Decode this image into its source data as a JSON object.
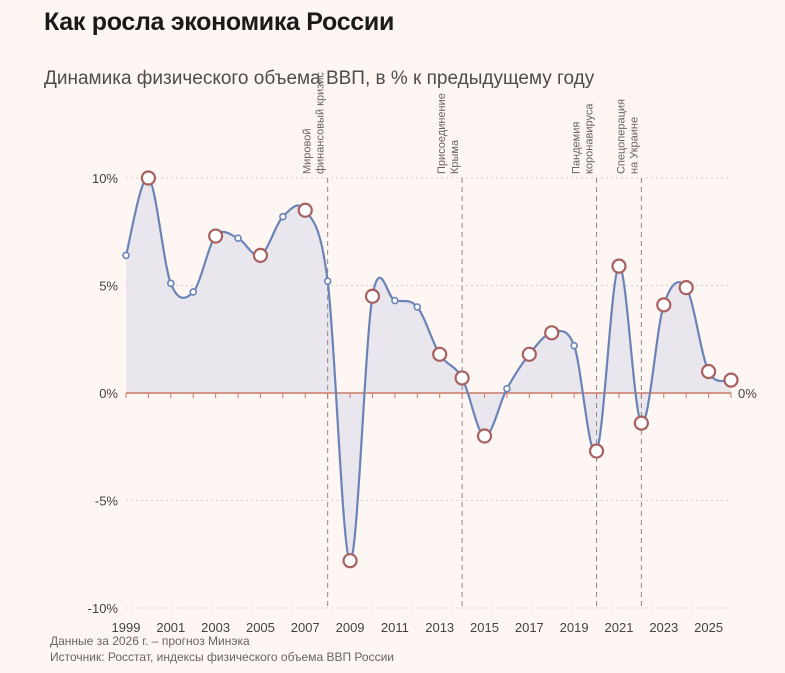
{
  "header": {
    "title": "Как росла экономика России",
    "subtitle": "Динамика физического объема ВВП, в % к предыдущему году"
  },
  "footer": {
    "note": "Данные за 2026 г. – прогноз Минэка",
    "source": "Источник: Росстат, индексы физического объема ВВП России"
  },
  "colors": {
    "line": "#6b84b8",
    "area": "#e6e3ec",
    "zero_line": "#c97a6a",
    "marker_stroke": "#a86060",
    "marker_fill": "#ffffff",
    "grid": "#d9d0cc",
    "event_line": "#888888"
  },
  "chart_data": {
    "type": "area",
    "title": "",
    "xlabel": "",
    "ylabel": "",
    "x": [
      1999,
      2000,
      2001,
      2002,
      2003,
      2004,
      2005,
      2006,
      2007,
      2008,
      2009,
      2010,
      2011,
      2012,
      2013,
      2014,
      2015,
      2016,
      2017,
      2018,
      2019,
      2020,
      2021,
      2022,
      2023,
      2024,
      2025,
      2026
    ],
    "values": [
      6.4,
      10.0,
      5.1,
      4.7,
      7.3,
      7.2,
      6.4,
      8.2,
      8.5,
      5.2,
      -7.8,
      4.5,
      4.3,
      4.0,
      1.8,
      0.7,
      -2.0,
      0.2,
      1.8,
      2.8,
      2.2,
      -2.7,
      5.9,
      -1.4,
      4.1,
      4.9,
      1.0,
      0.6
    ],
    "highlighted_years": [
      2000,
      2003,
      2005,
      2007,
      2009,
      2010,
      2013,
      2014,
      2015,
      2017,
      2018,
      2020,
      2021,
      2022,
      2023,
      2024,
      2025,
      2026
    ],
    "x_tick_labels": [
      "1999",
      "2001",
      "2003",
      "2005",
      "2007",
      "2009",
      "2011",
      "2013",
      "2015",
      "2017",
      "2019",
      "2021",
      "2023",
      "2025"
    ],
    "y_ticks": [
      10,
      5,
      0,
      -5,
      -10
    ],
    "y_tick_labels": [
      "10%",
      "5%",
      "0%",
      "-5%",
      "-10%"
    ],
    "zero_label": "0%",
    "xlim": [
      1999,
      2026
    ],
    "ylim": [
      -10,
      10
    ],
    "grid": true,
    "events": [
      {
        "x": 2008,
        "lines": [
          "Мировой",
          "финансовый кризис"
        ]
      },
      {
        "x": 2014,
        "lines": [
          "Присоединение",
          "Крыма"
        ]
      },
      {
        "x": 2020,
        "lines": [
          "Пандемия",
          "коронавируса"
        ]
      },
      {
        "x": 2022,
        "lines": [
          "Спецоперация",
          "на Украине"
        ]
      }
    ]
  }
}
